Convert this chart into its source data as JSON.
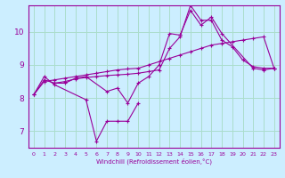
{
  "xlabel": "Windchill (Refroidissement éolien,°C)",
  "bg_color": "#cceeff",
  "line_color": "#990099",
  "grid_color": "#aaddcc",
  "xlim": [
    -0.5,
    23.5
  ],
  "ylim": [
    6.5,
    10.8
  ],
  "yticks": [
    7,
    8,
    9,
    10
  ],
  "xticks": [
    0,
    1,
    2,
    3,
    4,
    5,
    6,
    7,
    8,
    9,
    10,
    11,
    12,
    13,
    14,
    15,
    16,
    17,
    18,
    19,
    20,
    21,
    22,
    23
  ],
  "series": [
    {
      "x": [
        0,
        1,
        2,
        5,
        6,
        7,
        8,
        9,
        10
      ],
      "y": [
        8.1,
        8.65,
        8.4,
        7.95,
        6.7,
        7.3,
        7.3,
        7.3,
        7.85
      ]
    },
    {
      "x": [
        2,
        3,
        4,
        5,
        7,
        8,
        9,
        10,
        11,
        12,
        13,
        14
      ],
      "y": [
        8.45,
        8.45,
        8.6,
        8.65,
        8.2,
        8.3,
        7.85,
        8.45,
        8.65,
        9.0,
        9.95,
        9.9
      ]
    },
    {
      "x": [
        0,
        1,
        2,
        3,
        4,
        5,
        6,
        7,
        8,
        9,
        10,
        11,
        12,
        13,
        14,
        15,
        16,
        17,
        18,
        19,
        20,
        21,
        22,
        23
      ],
      "y": [
        8.1,
        8.5,
        8.55,
        8.6,
        8.65,
        8.7,
        8.75,
        8.8,
        8.85,
        8.88,
        8.9,
        9.0,
        9.1,
        9.2,
        9.3,
        9.4,
        9.5,
        9.6,
        9.65,
        9.7,
        9.75,
        9.8,
        9.85,
        8.9
      ]
    },
    {
      "x": [
        0,
        1,
        2,
        3,
        4,
        5,
        6,
        7,
        8,
        9,
        10,
        11,
        12,
        13,
        14,
        15,
        16,
        17,
        18,
        19,
        20,
        21,
        22,
        23
      ],
      "y": [
        8.1,
        8.55,
        8.45,
        8.5,
        8.58,
        8.62,
        8.65,
        8.68,
        8.7,
        8.72,
        8.75,
        8.8,
        8.85,
        9.5,
        9.85,
        10.8,
        10.35,
        10.35,
        9.75,
        9.55,
        9.15,
        8.95,
        8.9,
        8.9
      ]
    },
    {
      "x": [
        14,
        15,
        16,
        17,
        18,
        21,
        22,
        23
      ],
      "y": [
        9.9,
        10.65,
        10.2,
        10.45,
        9.95,
        8.9,
        8.85,
        8.9
      ]
    }
  ]
}
